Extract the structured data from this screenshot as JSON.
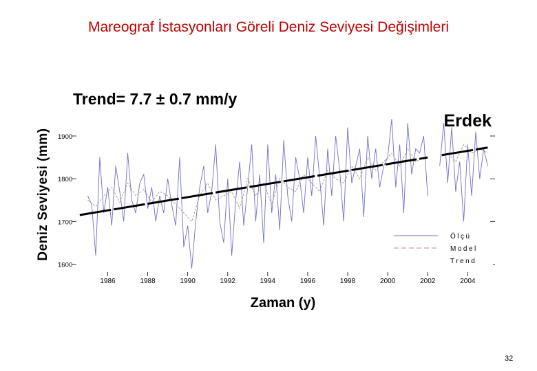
{
  "slide": {
    "title": "Mareograf İstasyonları Göreli Deniz Seviyesi Değişimleri",
    "page_number": "32"
  },
  "chart_data": {
    "type": "line",
    "station_label": "Erdek",
    "trend_label": "Trend= 7.7 ± 0.7 mm/y",
    "xlabel": "Zaman (y)",
    "ylabel": "Deniz Seviyesi (mm)",
    "xlim": [
      1984.4,
      2005.4
    ],
    "ylim": [
      1575,
      1945
    ],
    "xticks": [
      "1986",
      "1988",
      "1990",
      "1992",
      "1994",
      "1996",
      "1998",
      "2000",
      "2002",
      "2004"
    ],
    "yticks": [
      "1900",
      "1800",
      "1700",
      "1600"
    ],
    "legend": {
      "placement": "bottom-right",
      "entries": [
        "Ölçü",
        "Model",
        "Trend"
      ]
    },
    "colors": {
      "measured": "#6f6fc8",
      "model": "#b09080",
      "trend": "#000000"
    },
    "series": [
      {
        "name": "Ölçü",
        "style": "solid-thin",
        "x": [
          1985.0,
          1985.2,
          1985.4,
          1985.6,
          1985.8,
          1986.0,
          1986.2,
          1986.4,
          1986.6,
          1986.8,
          1987.0,
          1987.2,
          1987.4,
          1987.6,
          1987.8,
          1988.0,
          1988.2,
          1988.4,
          1988.6,
          1988.8,
          1989.0,
          1989.2,
          1989.4,
          1989.6,
          1989.8,
          1990.0,
          1990.2,
          1990.4,
          1990.6,
          1990.8,
          1991.0,
          1991.2,
          1991.4,
          1991.6,
          1991.8,
          1992.0,
          1992.2,
          1992.4,
          1992.6,
          1992.8,
          1993.0,
          1993.2,
          1993.4,
          1993.6,
          1993.8,
          1994.0,
          1994.2,
          1994.4,
          1994.6,
          1994.8,
          1995.0,
          1995.2,
          1995.4,
          1995.6,
          1995.8,
          1996.0,
          1996.2,
          1996.4,
          1996.6,
          1996.8,
          1997.0,
          1997.2,
          1997.4,
          1997.6,
          1997.8,
          1998.0,
          1998.2,
          1998.4,
          1998.6,
          1998.8,
          1999.0,
          1999.2,
          1999.4,
          1999.6,
          1999.8,
          2000.0,
          2000.2,
          2000.4,
          2000.6,
          2000.8,
          2001.0,
          2001.2,
          2001.4,
          2001.6,
          2001.8,
          2002.0,
          2002.2,
          2002.4,
          2002.6,
          2002.8,
          2003.0,
          2003.2,
          2003.4,
          2003.6,
          2003.8,
          2004.0,
          2004.2,
          2004.4,
          2004.6,
          2004.8,
          2005.0
        ],
        "y": [
          1760,
          1740,
          1620,
          1850,
          1720,
          1780,
          1690,
          1830,
          1770,
          1700,
          1860,
          1750,
          1720,
          1790,
          1810,
          1730,
          1780,
          1700,
          1760,
          1720,
          1800,
          1740,
          1690,
          1850,
          1640,
          1690,
          1590,
          1700,
          1780,
          1830,
          1720,
          1770,
          1880,
          1700,
          1650,
          1800,
          1620,
          1750,
          1840,
          1690,
          1780,
          1880,
          1700,
          1810,
          1650,
          1880,
          1720,
          1810,
          1680,
          1890,
          1760,
          1700,
          1850,
          1800,
          1720,
          1850,
          1760,
          1900,
          1800,
          1690,
          1870,
          1760,
          1900,
          1820,
          1700,
          1920,
          1790,
          1830,
          1870,
          1710,
          1900,
          1800,
          1870,
          1780,
          1830,
          1850,
          1940,
          1780,
          1880,
          1720,
          1930,
          1810,
          1870,
          1860,
          1900,
          1760,
          null,
          null,
          1830,
          1930,
          1790,
          1920,
          1770,
          1840,
          1700,
          1880,
          1760,
          1910,
          1800,
          1870,
          1830
        ]
      },
      {
        "name": "Model",
        "style": "dashed",
        "x": [
          1985.0,
          1985.4,
          1985.8,
          1986.2,
          1986.6,
          1987.0,
          1987.4,
          1987.8,
          1988.2,
          1988.6,
          1989.0,
          1989.4,
          1989.8,
          1990.2,
          1990.6,
          1991.0,
          1991.4,
          1991.8,
          1992.2,
          1992.6,
          1993.0,
          1993.4,
          1993.8,
          1994.2,
          1994.6,
          1995.0,
          1995.4,
          1995.8,
          1996.2,
          1996.6,
          1997.0,
          1997.4,
          1997.8,
          1998.2,
          1998.6,
          1999.0,
          1999.4,
          1999.8,
          2000.2,
          2000.6,
          2001.0,
          2001.4,
          2001.8,
          2002.2,
          2002.6,
          2003.0,
          2003.4,
          2003.8,
          2004.2,
          2004.6,
          2005.0
        ],
        "y": [
          1750,
          1735,
          1760,
          1780,
          1745,
          1790,
          1760,
          1775,
          1745,
          1770,
          1760,
          1740,
          1720,
          1700,
          1760,
          1790,
          1750,
          1760,
          1770,
          1730,
          1800,
          1760,
          1790,
          1740,
          1800,
          1780,
          1770,
          1810,
          1790,
          1770,
          1820,
          1800,
          1790,
          1830,
          1800,
          1850,
          1820,
          1840,
          1860,
          1830,
          1870,
          1840,
          1850,
          null,
          1850,
          1860,
          1840,
          1880,
          1860,
          1870,
          1860
        ]
      },
      {
        "name": "Trend",
        "style": "thick-dashed",
        "x": [
          1984.6,
          2005.0
        ],
        "y": [
          1715,
          1873
        ],
        "gaps": [
          [
            2002.0,
            2002.7
          ]
        ]
      }
    ]
  }
}
